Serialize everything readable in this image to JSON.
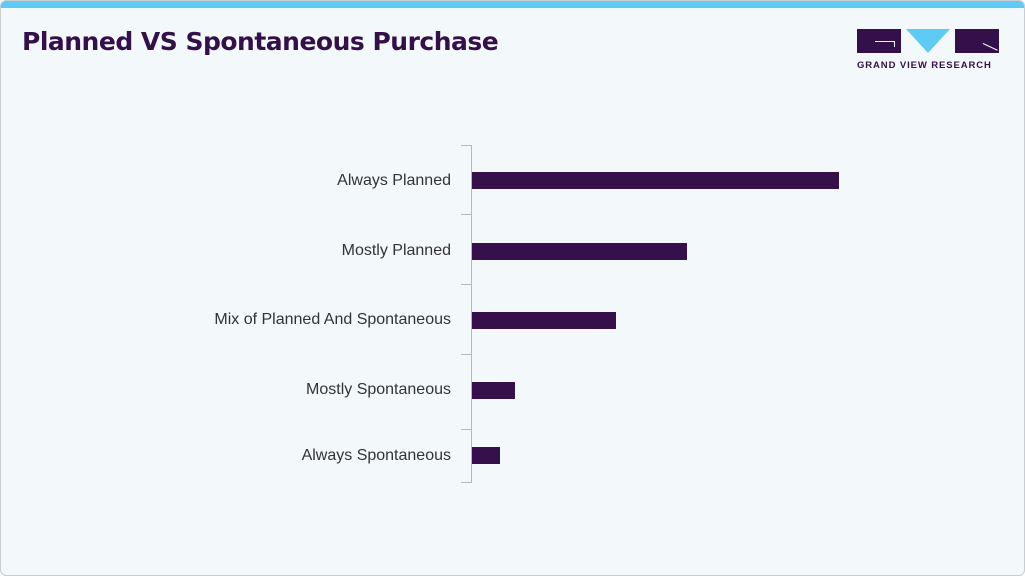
{
  "header": {
    "title": "Planned VS Spontaneous Purchase",
    "logo_text": "GRAND VIEW RESEARCH"
  },
  "colors": {
    "bar": "#36104a",
    "accent": "#5ecbf5",
    "title": "#33104a"
  },
  "chart_data": {
    "type": "bar",
    "orientation": "horizontal",
    "title": "Planned VS Spontaneous Purchase",
    "categories": [
      "Always Planned",
      "Mostly Planned",
      "Mix of Planned And Spontaneous",
      "Mostly Spontaneous",
      "Always Spontaneous"
    ],
    "values": [
      46,
      27,
      18,
      5.4,
      3.5
    ],
    "xlabel": "",
    "ylabel": "",
    "grid": false,
    "legend": null,
    "note": "values are relative estimates from bar lengths; no value axis shown"
  }
}
